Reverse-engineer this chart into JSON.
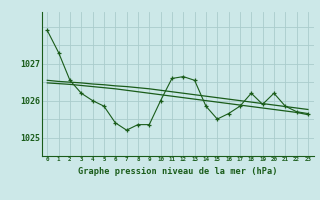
{
  "title": "",
  "xlabel": "Graphe pression niveau de la mer (hPa)",
  "background_color": "#cce8e8",
  "grid_color": "#aacccc",
  "line_color": "#1a5c1a",
  "x_ticks": [
    0,
    1,
    2,
    3,
    4,
    5,
    6,
    7,
    8,
    9,
    10,
    11,
    12,
    13,
    14,
    15,
    16,
    17,
    18,
    19,
    20,
    21,
    22,
    23
  ],
  "ylim": [
    1024.5,
    1028.4
  ],
  "yticks": [
    1025,
    1026,
    1027
  ],
  "series1": [
    1027.9,
    1027.3,
    1026.55,
    1026.2,
    1026.0,
    1025.85,
    1025.4,
    1025.2,
    1025.35,
    1025.35,
    1026.0,
    1026.6,
    1026.65,
    1026.55,
    1025.85,
    1025.5,
    1025.65,
    1025.85,
    1026.2,
    1025.9,
    1026.2,
    1025.85,
    1025.7,
    1025.65
  ],
  "series2": [
    1026.55,
    1026.52,
    1026.5,
    1026.48,
    1026.45,
    1026.43,
    1026.4,
    1026.38,
    1026.35,
    1026.32,
    1026.28,
    1026.24,
    1026.2,
    1026.16,
    1026.12,
    1026.08,
    1026.04,
    1026.0,
    1025.96,
    1025.92,
    1025.88,
    1025.84,
    1025.8,
    1025.76
  ],
  "series3": [
    1026.48,
    1026.46,
    1026.44,
    1026.41,
    1026.38,
    1026.35,
    1026.32,
    1026.28,
    1026.24,
    1026.2,
    1026.16,
    1026.12,
    1026.08,
    1026.04,
    1026.0,
    1025.96,
    1025.92,
    1025.88,
    1025.84,
    1025.8,
    1025.76,
    1025.72,
    1025.68,
    1025.62
  ]
}
